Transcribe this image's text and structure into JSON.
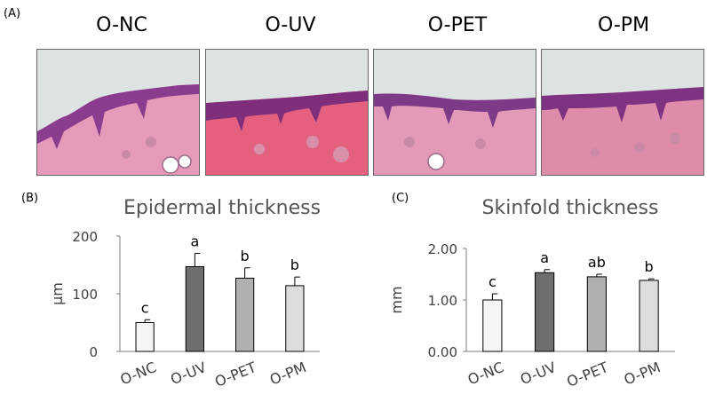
{
  "panel_labels": {
    "a": "(A)",
    "b": "(B)",
    "c": "(C)"
  },
  "images": [
    {
      "label": "O-NC"
    },
    {
      "label": "O-UV"
    },
    {
      "label": "O-PET"
    },
    {
      "label": "O-PM"
    }
  ],
  "colors": {
    "bar_fills": [
      "#f5f5f5",
      "#6e6e6e",
      "#b0b0b0",
      "#dcdcdc"
    ],
    "axis": "#7f7f7f",
    "tissue_pink": "#e69aba",
    "epidermis_purple": "#8a3d8f",
    "background_lightgray": "#dde2e3"
  },
  "chart_data": [
    {
      "type": "bar",
      "title": "Epidermal thickness",
      "ylabel": "μm",
      "xlabel": "",
      "categories": [
        "O-NC",
        "O-UV",
        "O-PET",
        "O-PM"
      ],
      "values": [
        50,
        147,
        127,
        114
      ],
      "errors": [
        5,
        23,
        18,
        15
      ],
      "significance": [
        "c",
        "a",
        "b",
        "b"
      ],
      "ylim": [
        0,
        200
      ],
      "yticks": [
        "0",
        "100",
        "200"
      ],
      "ytick_values": [
        0,
        100,
        200
      ],
      "grid": false,
      "legend": "none"
    },
    {
      "type": "bar",
      "title": "Skinfold thickness",
      "ylabel": "mm",
      "xlabel": "",
      "categories": [
        "O-NC",
        "O-UV",
        "O-PET",
        "O-PM"
      ],
      "values": [
        1.0,
        1.53,
        1.45,
        1.38
      ],
      "errors": [
        0.12,
        0.06,
        0.05,
        0.03
      ],
      "significance": [
        "c",
        "a",
        "ab",
        "b"
      ],
      "ylim": [
        0,
        2.0
      ],
      "yticks": [
        "0.00",
        "1.00",
        "2.00"
      ],
      "ytick_values": [
        0,
        1.0,
        2.0
      ],
      "grid": false,
      "legend": "none"
    }
  ]
}
